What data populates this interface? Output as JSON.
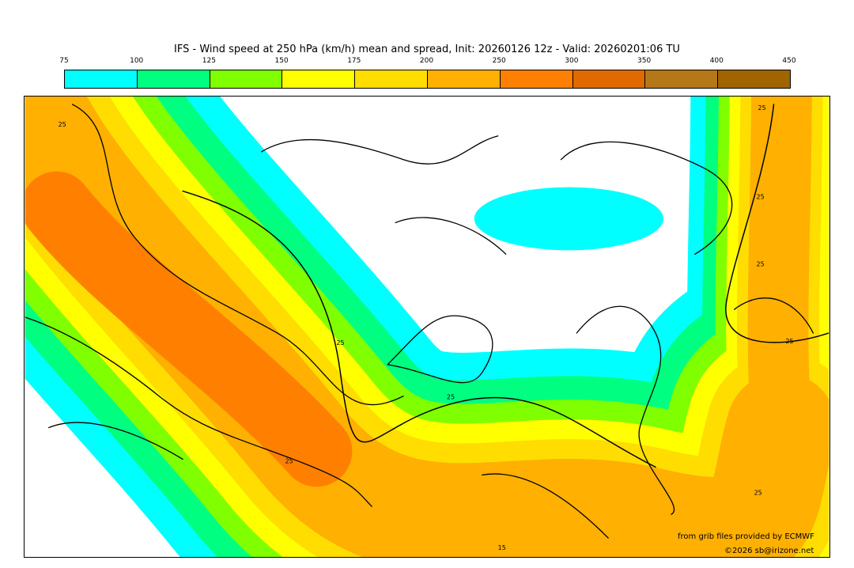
{
  "title": "IFS - Wind speed at 250 hPa (km/h) mean and spread, Init: 20260126 12z - Valid: 20260201:06 TU",
  "colorbar": {
    "ticks": [
      "75",
      "100",
      "125",
      "150",
      "175",
      "200",
      "250",
      "300",
      "350",
      "400",
      "450"
    ],
    "colors": [
      "#00ffff",
      "#00ff80",
      "#80ff00",
      "#ffff00",
      "#ffdd00",
      "#ffb000",
      "#ff8000",
      "#e06a00",
      "#b57818",
      "#a06400"
    ]
  },
  "map": {
    "contour_labels": [
      "25",
      "25",
      "25",
      "25",
      "25",
      "25",
      "25",
      "25",
      "25",
      "15"
    ]
  },
  "credits": {
    "source": "from grib files provided by ECMWF",
    "copyright": "©2026 sb@irizone.net"
  }
}
